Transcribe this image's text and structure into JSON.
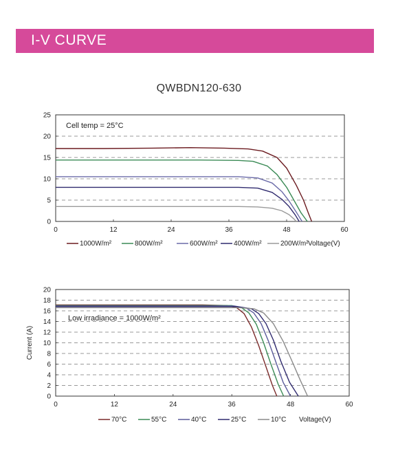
{
  "header": {
    "title": "I-V CURVE"
  },
  "model": "QWBDN120-630",
  "colors": {
    "banner": "#d64a9a",
    "s1000": "#6b1a1f",
    "s800": "#3a8a55",
    "s600": "#6a6aa8",
    "s400": "#2f2a6e",
    "s200": "#9a9a9a",
    "t70": "#7a2a2a",
    "t55": "#3a8a55",
    "t40": "#5a5a9a",
    "t25": "#2f2a6e",
    "t10": "#8a8a8a"
  },
  "chart_data": [
    {
      "type": "line",
      "title": "",
      "annotation": "Cell temp = 25°C",
      "xlabel": "Voltage(V)",
      "ylabel": "",
      "xlim": [
        0,
        60
      ],
      "ylim": [
        0,
        25
      ],
      "xticks": [
        "0",
        "12",
        "24",
        "36",
        "48",
        "60"
      ],
      "yticks": [
        "0",
        "5",
        "10",
        "15",
        "20",
        "25"
      ],
      "grid": "horizontal dashed",
      "legend_position": "bottom",
      "series": [
        {
          "name": "1000W/m²",
          "color": "s1000",
          "x": [
            0,
            10,
            20,
            28,
            35,
            40,
            43,
            46,
            48,
            50,
            51.5,
            52.5,
            53.2
          ],
          "y": [
            17.1,
            17.1,
            17.2,
            17.3,
            17.2,
            17.0,
            16.5,
            15.0,
            12.5,
            8.5,
            5.0,
            2.0,
            0
          ]
        },
        {
          "name": "800W/m²",
          "color": "s800",
          "x": [
            0,
            10,
            20,
            30,
            38,
            41,
            44,
            46,
            48,
            49.5,
            51,
            52.3
          ],
          "y": [
            14.4,
            14.4,
            14.4,
            14.4,
            14.3,
            14.1,
            13.0,
            11.0,
            8.0,
            5.0,
            2.0,
            0
          ]
        },
        {
          "name": "600W/m²",
          "color": "s600",
          "x": [
            0,
            10,
            20,
            30,
            38,
            42,
            45,
            47,
            48.5,
            50,
            51.2
          ],
          "y": [
            10.5,
            10.5,
            10.5,
            10.5,
            10.5,
            10.2,
            9.0,
            7.0,
            4.8,
            2.2,
            0
          ]
        },
        {
          "name": "400W/m²",
          "color": "s400",
          "x": [
            0,
            10,
            20,
            30,
            38,
            42,
            45,
            47,
            48.5,
            49.8,
            50.6
          ],
          "y": [
            8.0,
            8.0,
            8.0,
            8.0,
            8.0,
            7.8,
            6.8,
            5.2,
            3.5,
            1.5,
            0
          ]
        },
        {
          "name": "200W/m²",
          "color": "s200",
          "x": [
            0,
            10,
            20,
            30,
            38,
            42,
            45,
            47,
            48.5,
            49.5,
            50.0
          ],
          "y": [
            3.5,
            3.5,
            3.5,
            3.5,
            3.5,
            3.4,
            3.1,
            2.5,
            1.6,
            0.6,
            0
          ]
        }
      ]
    },
    {
      "type": "line",
      "title": "",
      "annotation": "Low irradiance = 1000W/m²",
      "xlabel": "Voltage(V)",
      "ylabel": "Current (A)",
      "xlim": [
        0,
        60
      ],
      "ylim": [
        0,
        20
      ],
      "xticks": [
        "0",
        "12",
        "24",
        "36",
        "48",
        "60"
      ],
      "yticks": [
        "0",
        "2",
        "4",
        "6",
        "8",
        "10",
        "12",
        "14",
        "16",
        "18",
        "20"
      ],
      "grid": "horizontal dashed",
      "legend_position": "bottom",
      "series": [
        {
          "name": "70°C",
          "color": "t70",
          "x": [
            0,
            10,
            20,
            30,
            35,
            37,
            38.5,
            40,
            41.5,
            43,
            44.3,
            45.2
          ],
          "y": [
            17.1,
            17.1,
            17.1,
            17.1,
            17.0,
            16.6,
            15.5,
            13.0,
            9.5,
            5.5,
            2.0,
            0
          ]
        },
        {
          "name": "55°C",
          "color": "t55",
          "x": [
            0,
            10,
            20,
            30,
            36,
            38,
            39.5,
            41,
            42.5,
            44,
            45.5,
            46.6
          ],
          "y": [
            17.0,
            17.0,
            17.0,
            17.0,
            17.0,
            16.6,
            15.6,
            13.5,
            10.0,
            6.0,
            2.2,
            0
          ]
        },
        {
          "name": "40°C",
          "color": "t40",
          "x": [
            0,
            10,
            20,
            30,
            36.5,
            39,
            40.5,
            42,
            43.5,
            45,
            46.5,
            48.0
          ],
          "y": [
            16.9,
            16.9,
            16.9,
            16.9,
            16.9,
            16.5,
            15.6,
            13.6,
            10.3,
            6.4,
            2.6,
            0
          ]
        },
        {
          "name": "25°C",
          "color": "t25",
          "x": [
            0,
            10,
            20,
            30,
            37,
            40,
            41.5,
            43,
            44.5,
            46,
            47.8,
            49.6
          ],
          "y": [
            16.8,
            16.8,
            16.8,
            16.8,
            16.8,
            16.4,
            15.5,
            13.6,
            10.5,
            6.6,
            2.6,
            0
          ]
        },
        {
          "name": "10°C",
          "color": "t10",
          "x": [
            0,
            10,
            20,
            30,
            37.5,
            40.5,
            42.5,
            44.5,
            46.5,
            48.3,
            50,
            51.5
          ],
          "y": [
            16.6,
            16.6,
            16.6,
            16.6,
            16.6,
            16.4,
            15.6,
            13.6,
            10.3,
            6.6,
            3.0,
            0
          ]
        }
      ]
    }
  ]
}
